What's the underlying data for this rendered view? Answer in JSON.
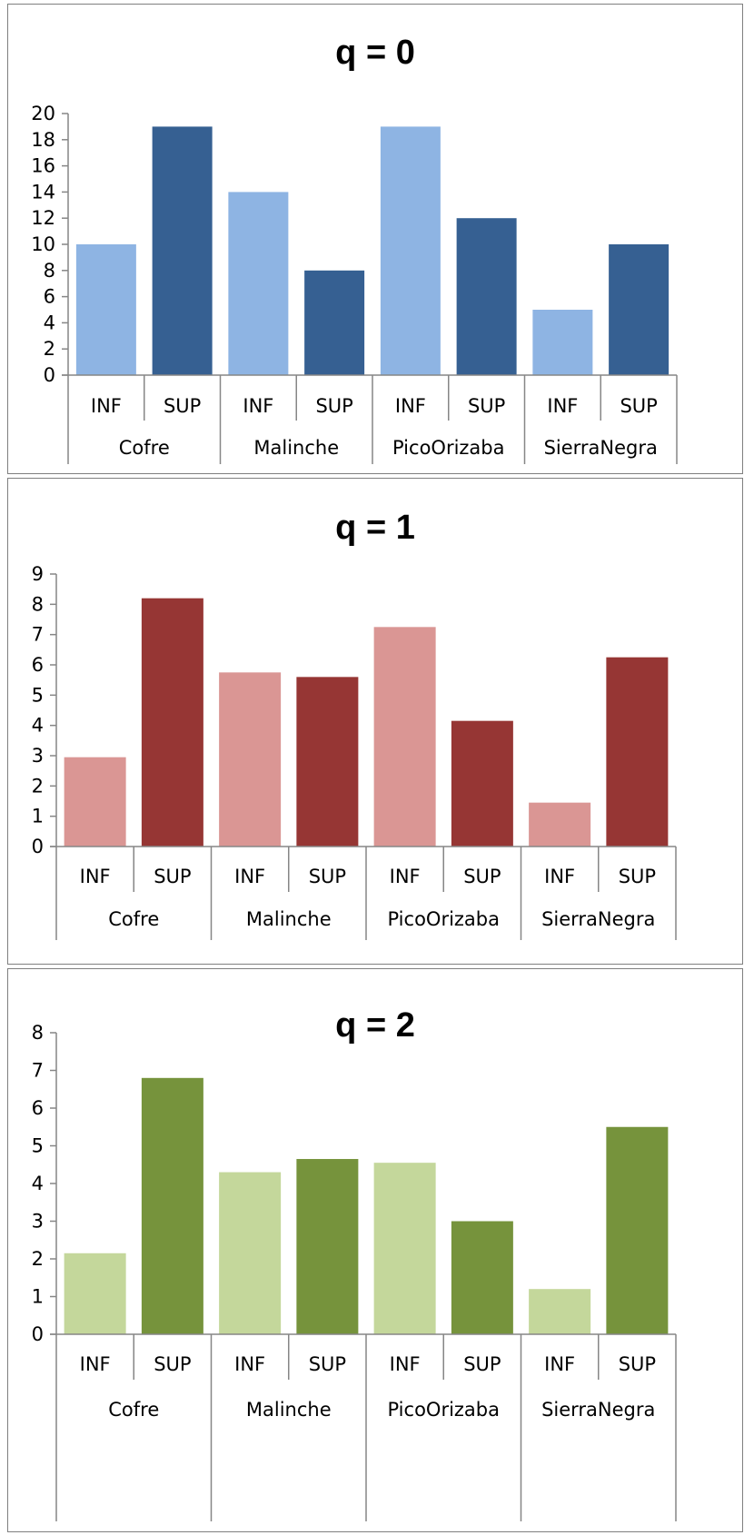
{
  "chart_data": [
    {
      "type": "bar",
      "title": "q = 0",
      "groups": [
        "Cofre",
        "Malinche",
        "PicoOrizaba",
        "SierraNegra"
      ],
      "subcategories": [
        "INF",
        "SUP"
      ],
      "ylim": [
        0,
        20
      ],
      "yticks": [
        0,
        2,
        4,
        6,
        8,
        10,
        12,
        14,
        16,
        18,
        20
      ],
      "values": [
        10,
        19,
        14,
        8,
        19,
        12,
        5,
        10
      ],
      "colors": {
        "INF": "#8eb4e3",
        "SUP": "#366092"
      }
    },
    {
      "type": "bar",
      "title": "q = 1",
      "groups": [
        "Cofre",
        "Malinche",
        "PicoOrizaba",
        "SierraNegra"
      ],
      "subcategories": [
        "INF",
        "SUP"
      ],
      "ylim": [
        0,
        9
      ],
      "yticks": [
        0,
        1,
        2,
        3,
        4,
        5,
        6,
        7,
        8,
        9
      ],
      "values": [
        2.95,
        8.2,
        5.75,
        5.6,
        7.25,
        4.15,
        1.45,
        6.25
      ],
      "colors": {
        "INF": "#da9694",
        "SUP": "#963634"
      }
    },
    {
      "type": "bar",
      "title": "q = 2",
      "groups": [
        "Cofre",
        "Malinche",
        "PicoOrizaba",
        "SierraNegra"
      ],
      "subcategories": [
        "INF",
        "SUP"
      ],
      "ylim": [
        0,
        8
      ],
      "yticks": [
        0,
        1,
        2,
        3,
        4,
        5,
        6,
        7,
        8
      ],
      "values": [
        2.15,
        6.8,
        4.3,
        4.65,
        4.55,
        3.0,
        1.2,
        5.5
      ],
      "colors": {
        "INF": "#c4d79b",
        "SUP": "#76933c"
      }
    }
  ]
}
